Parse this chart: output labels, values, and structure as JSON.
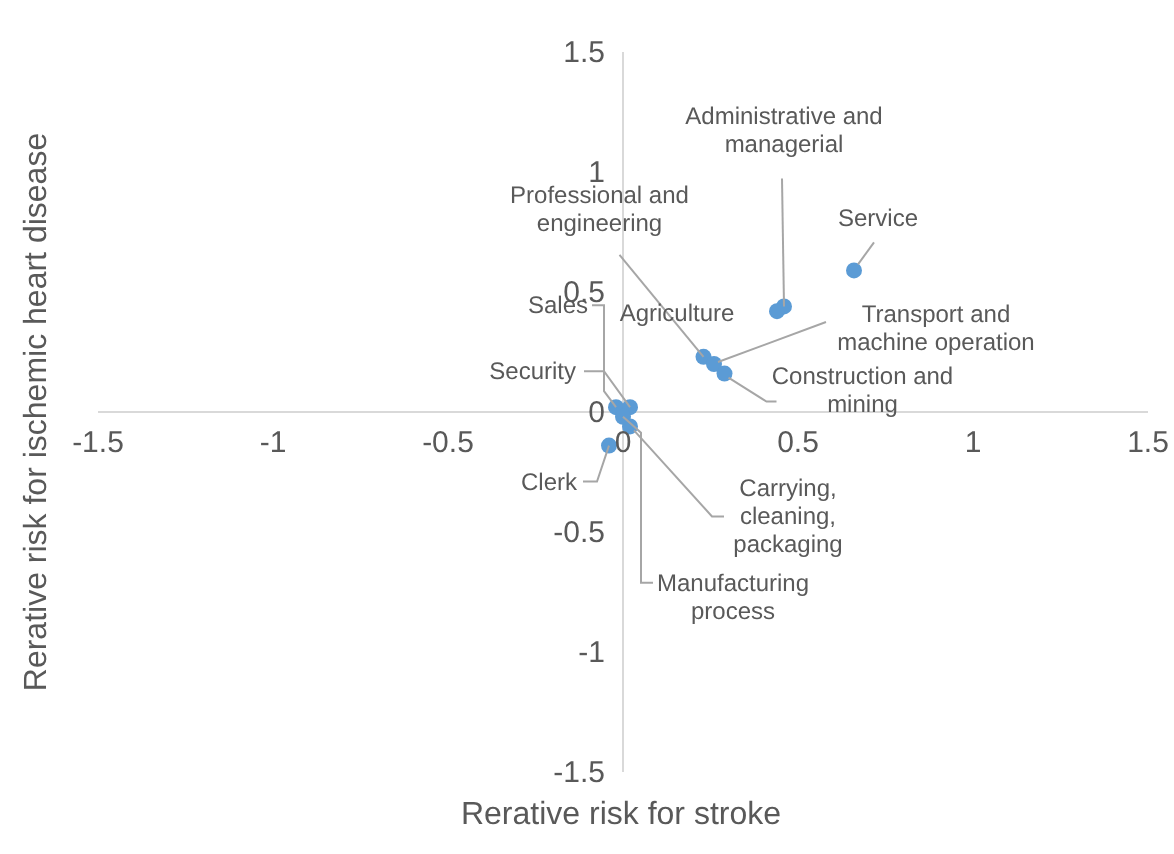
{
  "chart_data": {
    "type": "scatter",
    "xlabel": "Rerative risk for stroke",
    "ylabel": "Rerative risk for ischemic heart disease",
    "x": [
      0.46,
      0.66,
      0.23,
      0.44,
      0.26,
      0.29,
      -0.02,
      0.02,
      0.02,
      -0.04,
      0.0
    ],
    "values": [
      0.44,
      0.59,
      0.23,
      0.42,
      0.2,
      0.16,
      0.02,
      0.02,
      -0.06,
      -0.14,
      -0.02
    ],
    "color": "#5b9bd5",
    "marker": "circle",
    "grid": false,
    "xlim": [
      -1.5,
      1.5
    ],
    "xticks": [
      -1.5,
      -1,
      -0.5,
      0,
      0.5,
      1,
      1.5
    ],
    "ylim": [
      -1.5,
      1.5
    ],
    "yticks": [
      -1.5,
      -1,
      -0.5,
      0,
      0.5,
      1,
      1.5
    ],
    "annotations": [
      {
        "text": "Administrative and managerial",
        "x": 0.46,
        "y": 0.44
      },
      {
        "text": "Service",
        "x": 0.66,
        "y": 0.59
      },
      {
        "text": "Professional and engineering",
        "x": 0.23,
        "y": 0.23
      },
      {
        "text": "Agriculture",
        "x": 0.44,
        "y": 0.42
      },
      {
        "text": "Transport and machine operation",
        "x": 0.26,
        "y": 0.2
      },
      {
        "text": "Construction and mining",
        "x": 0.29,
        "y": 0.16
      },
      {
        "text": "Sales",
        "x": -0.02,
        "y": 0.02
      },
      {
        "text": "Security",
        "x": 0.02,
        "y": 0.02
      },
      {
        "text": "Carrying, cleaning, packaging",
        "x": 0.02,
        "y": -0.06
      },
      {
        "text": "Clerk",
        "x": -0.04,
        "y": -0.14
      },
      {
        "text": "Manufacturing process",
        "x": 0.0,
        "y": -0.02
      }
    ]
  }
}
